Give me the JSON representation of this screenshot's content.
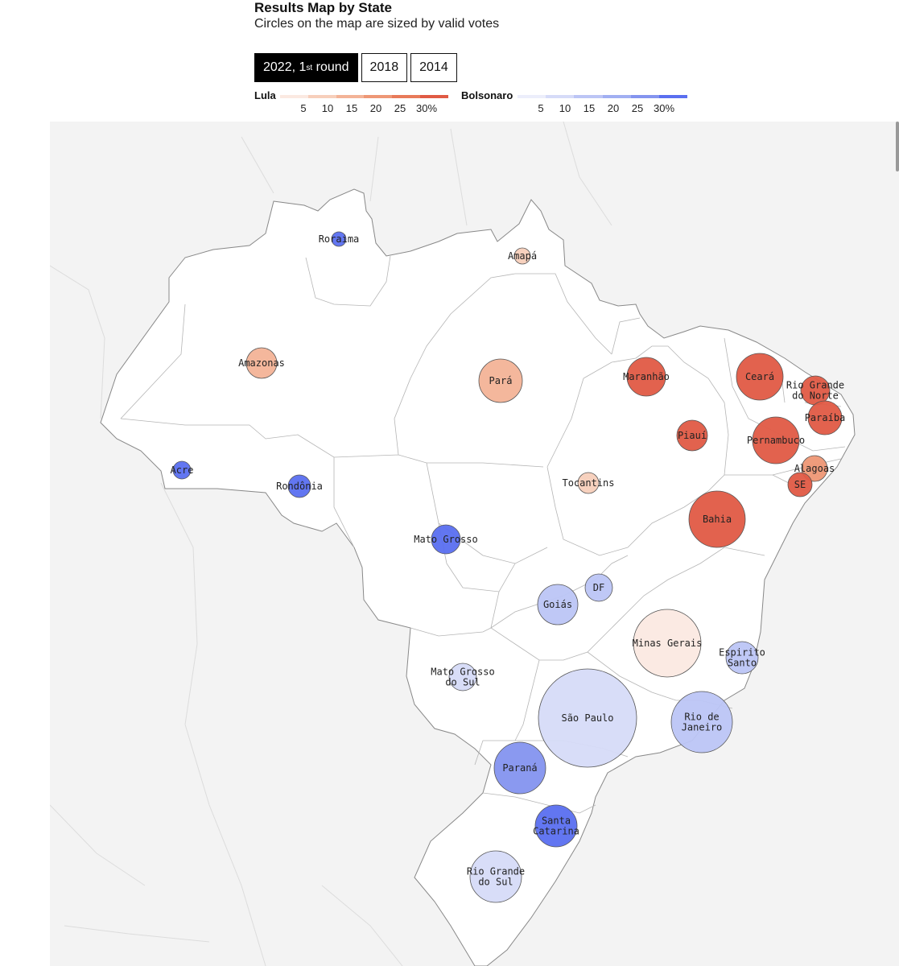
{
  "header": {
    "title": "Results Map by State",
    "subtitle": "Circles on the map are sized by valid votes"
  },
  "tabs": [
    {
      "label": "2022, 1",
      "sup": "st",
      "suffix": " round",
      "active": true
    },
    {
      "label": "2018",
      "active": false
    },
    {
      "label": "2014",
      "active": false
    }
  ],
  "legend": {
    "lula": {
      "name": "Lula",
      "ticks": [
        "5",
        "10",
        "15",
        "20",
        "25",
        "30%"
      ]
    },
    "bolsonaro": {
      "name": "Bolsonaro",
      "ticks": [
        "5",
        "10",
        "15",
        "20",
        "25",
        "30%"
      ]
    }
  },
  "colors": {
    "lula": [
      "#fbe9e1",
      "#f7cfbb",
      "#f3b397",
      "#ee9775",
      "#e87a59",
      "#e05a44"
    ],
    "bolsonaro": [
      "#eceefb",
      "#d6dbf8",
      "#bcc5f5",
      "#a1aff2",
      "#8494ef",
      "#5a6ff0"
    ],
    "map_background": "#f3f3f3",
    "country_fill": "#ffffff"
  },
  "states": [
    {
      "name": "Roraima",
      "lines": [
        "Roraima"
      ],
      "winner": "Bolsonaro",
      "margin": 30
    },
    {
      "name": "Amapá",
      "lines": [
        "Amapá"
      ],
      "winner": "Lula",
      "margin": 5
    },
    {
      "name": "Amazonas",
      "lines": [
        "Amazonas"
      ],
      "winner": "Lula",
      "margin": 12
    },
    {
      "name": "Pará",
      "lines": [
        "Pará"
      ],
      "winner": "Lula",
      "margin": 14
    },
    {
      "name": "Maranhão",
      "lines": [
        "Maranhão"
      ],
      "winner": "Lula",
      "margin": 30
    },
    {
      "name": "Ceará",
      "lines": [
        "Ceará"
      ],
      "winner": "Lula",
      "margin": 30
    },
    {
      "name": "Rio Grande do Norte",
      "lines": [
        "Rio Grande",
        "do Norte"
      ],
      "winner": "Lula",
      "margin": 30
    },
    {
      "name": "Paraíba",
      "lines": [
        "Paraíba"
      ],
      "winner": "Lula",
      "margin": 30
    },
    {
      "name": "Piauí",
      "lines": [
        "Piauí"
      ],
      "winner": "Lula",
      "margin": 30
    },
    {
      "name": "Pernambuco",
      "lines": [
        "Pernambuco"
      ],
      "winner": "Lula",
      "margin": 30
    },
    {
      "name": "Alagoas",
      "lines": [
        "Alagoas"
      ],
      "winner": "Lula",
      "margin": 17
    },
    {
      "name": "SE",
      "lines": [
        "SE"
      ],
      "winner": "Lula",
      "margin": 30
    },
    {
      "name": "Acre",
      "lines": [
        "Acre"
      ],
      "winner": "Bolsonaro",
      "margin": 30
    },
    {
      "name": "Rondônia",
      "lines": [
        "Rondônia"
      ],
      "winner": "Bolsonaro",
      "margin": 30
    },
    {
      "name": "Tocantins",
      "lines": [
        "Tocantins"
      ],
      "winner": "Lula",
      "margin": 7
    },
    {
      "name": "Bahia",
      "lines": [
        "Bahia"
      ],
      "winner": "Lula",
      "margin": 30
    },
    {
      "name": "Mato Grosso",
      "lines": [
        "Mato Grosso"
      ],
      "winner": "Bolsonaro",
      "margin": 28
    },
    {
      "name": "DF",
      "lines": [
        "DF"
      ],
      "winner": "Bolsonaro",
      "margin": 10
    },
    {
      "name": "Goiás",
      "lines": [
        "Goiás"
      ],
      "winner": "Bolsonaro",
      "margin": 13
    },
    {
      "name": "Minas Gerais",
      "lines": [
        "Minas Gerais"
      ],
      "winner": "Lula",
      "margin": 3
    },
    {
      "name": "Espírito Santo",
      "lines": [
        "Espirito",
        "Santo"
      ],
      "winner": "Bolsonaro",
      "margin": 10
    },
    {
      "name": "Mato Grosso do Sul",
      "lines": [
        "Mato Grosso",
        "do Sul"
      ],
      "winner": "Bolsonaro",
      "margin": 9
    },
    {
      "name": "São Paulo",
      "lines": [
        "São Paulo"
      ],
      "winner": "Bolsonaro",
      "margin": 7
    },
    {
      "name": "Rio de Janeiro",
      "lines": [
        "Rio de",
        "Janeiro"
      ],
      "winner": "Bolsonaro",
      "margin": 13
    },
    {
      "name": "Paraná",
      "lines": [
        "Paraná"
      ],
      "winner": "Bolsonaro",
      "margin": 20
    },
    {
      "name": "Santa Catarina",
      "lines": [
        "Santa",
        "Catarina"
      ],
      "winner": "Bolsonaro",
      "margin": 30
    },
    {
      "name": "Rio Grande do Sul",
      "lines": [
        "Rio Grande",
        "do Sul"
      ],
      "winner": "Bolsonaro",
      "margin": 6
    }
  ]
}
